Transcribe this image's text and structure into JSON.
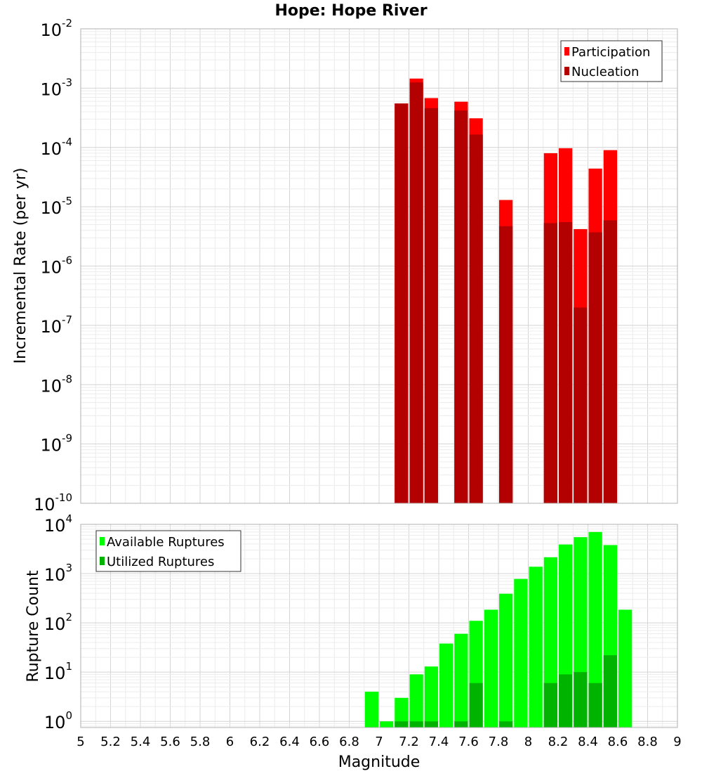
{
  "title": "Hope: Hope River",
  "colors": {
    "participation": "#ff0000",
    "nucleation": "#b30000",
    "available": "#00ff00",
    "utilized": "#00b300",
    "grid_minor": "#ececec",
    "grid_major": "#d4d4d4",
    "frame": "#b0b0b0"
  },
  "chart_data": [
    {
      "type": "bar",
      "title": "Hope: Hope River",
      "xlabel": "",
      "ylabel": "Incremental Rate (per yr)",
      "yscale": "log",
      "xlim": [
        5,
        9
      ],
      "ylim": [
        1e-10,
        0.01
      ],
      "bin_width": 0.1,
      "grid": true,
      "legend_position": "top-right",
      "ytick_exponents": [
        "-2",
        "-3",
        "-4",
        "-5",
        "-6",
        "-7",
        "-8",
        "-9",
        "-10"
      ],
      "categories": [
        7.15,
        7.25,
        7.35,
        7.55,
        7.65,
        7.85,
        8.15,
        8.25,
        8.35,
        8.45,
        8.55
      ],
      "series": [
        {
          "name": "Participation",
          "color": "#ff0000",
          "values": [
            0.00055,
            0.00145,
            0.00068,
            0.00059,
            0.00031,
            1.3e-05,
            8e-05,
            9.7e-05,
            4.2e-06,
            4.4e-05,
            9e-05
          ]
        },
        {
          "name": "Nucleation",
          "color": "#b30000",
          "values": [
            0.00055,
            0.00125,
            0.00046,
            0.00042,
            0.000165,
            4.7e-06,
            5.3e-06,
            5.5e-06,
            2e-07,
            3.7e-06,
            5.9e-06
          ]
        }
      ]
    },
    {
      "type": "bar",
      "title": "",
      "xlabel": "Magnitude",
      "ylabel": "Rupture Count",
      "yscale": "log",
      "xlim": [
        5,
        9
      ],
      "ylim": [
        0.75,
        10000
      ],
      "bin_width": 0.1,
      "grid": true,
      "legend_position": "top-left",
      "xtick_labels": [
        "5",
        "5.2",
        "5.4",
        "5.6",
        "5.8",
        "6",
        "6.2",
        "6.4",
        "6.6",
        "6.8",
        "7",
        "7.2",
        "7.4",
        "7.6",
        "7.8",
        "8",
        "8.2",
        "8.4",
        "8.6",
        "8.8",
        "9"
      ],
      "ytick_exponents": [
        "4",
        "3",
        "2",
        "1",
        "0"
      ],
      "categories": [
        6.95,
        7.05,
        7.15,
        7.25,
        7.35,
        7.45,
        7.55,
        7.65,
        7.75,
        7.85,
        7.95,
        8.05,
        8.15,
        8.25,
        8.35,
        8.45,
        8.55,
        8.65
      ],
      "series": [
        {
          "name": "Available Ruptures",
          "color": "#00ff00",
          "values": [
            4,
            1,
            3,
            9,
            13,
            38,
            60,
            110,
            185,
            390,
            780,
            1380,
            2150,
            3900,
            5500,
            7000,
            3800,
            185
          ]
        },
        {
          "name": "Utilized Ruptures",
          "color": "#00b300",
          "values": [
            0,
            0,
            1,
            1,
            1,
            0,
            1,
            6,
            0,
            1,
            0,
            0,
            6,
            9,
            10,
            6,
            22,
            0
          ]
        }
      ]
    }
  ]
}
